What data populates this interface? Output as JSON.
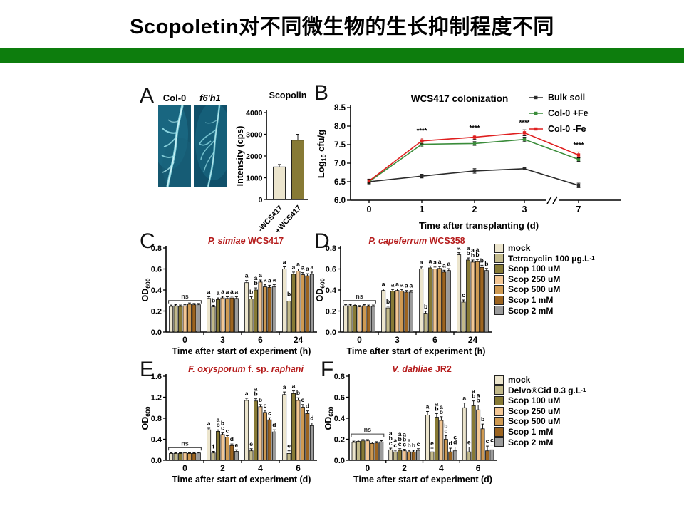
{
  "slide": {
    "title": "Scopoletin对不同微生物的生长抑制程度不同",
    "accent_color": "#0d7d0d",
    "background": "#ffffff"
  },
  "panels": {
    "a": {
      "letter": "A",
      "images": [
        {
          "text": "Col-0",
          "italic": false
        },
        {
          "text": "f6'h1",
          "italic": true
        }
      ]
    },
    "b": {
      "letter": "B"
    },
    "c": {
      "letter": "C"
    },
    "d": {
      "letter": "D"
    },
    "e": {
      "letter": "E"
    },
    "f": {
      "letter": "F"
    }
  },
  "legends": {
    "bacteria": {
      "items": [
        {
          "label": "mock",
          "color": "#ece5cd"
        },
        {
          "label": "Tetracyclin 100 μg.L",
          "sup": "-1",
          "color": "#c2b98a"
        },
        {
          "label": "Scop 100 uM",
          "color": "#877a35"
        },
        {
          "label": "Scop 250 uM",
          "color": "#f3c795"
        },
        {
          "label": "Scop 500 uM",
          "color": "#cf9a52"
        },
        {
          "label": "Scop 1 mM",
          "color": "#9c6420"
        },
        {
          "label": "Scop 2 mM",
          "color": "#9b9b9b"
        }
      ]
    },
    "fungi": {
      "items": [
        {
          "label": "mock",
          "color": "#ece5cd"
        },
        {
          "label": "Delvo®Cid 0.3 g.L",
          "sup": "-1",
          "color": "#c2b98a"
        },
        {
          "label": "Scop 100 uM",
          "color": "#877a35"
        },
        {
          "label": "Scop 250 uM",
          "color": "#f3c795"
        },
        {
          "label": "Scop 500 uM",
          "color": "#cf9a52"
        },
        {
          "label": "Scop 1 mM",
          "color": "#9c6420"
        },
        {
          "label": "Scop 2 mM",
          "color": "#9b9b9b"
        }
      ]
    }
  },
  "chart_data": [
    {
      "id": "scopolin",
      "type": "bar",
      "title": "Scopolin",
      "ylabel": "Intensity (cps)",
      "ylim": [
        0,
        4000
      ],
      "yticks": [
        "0",
        "1000",
        "2000",
        "3000",
        "4000"
      ],
      "categories": [
        "-WCS417",
        "+WCS417"
      ],
      "values": [
        1500,
        2730
      ],
      "errors": [
        110,
        270
      ],
      "bar_colors": [
        "#ece5cd",
        "#877a35"
      ]
    },
    {
      "id": "colonization",
      "type": "line",
      "title": "WCS417 colonization",
      "ylabel_main": "Log",
      "ylabel_sub": "10",
      "ylabel_rest": " cfu/g",
      "xlabel": "Time after transplanting (d)",
      "ylim": [
        6.0,
        8.5
      ],
      "yticks": [
        "6.0",
        "6.5",
        "7.0",
        "7.5",
        "8.0",
        "8.5"
      ],
      "xticklabels": [
        "0",
        "1",
        "2",
        "3",
        "7"
      ],
      "axis_break_between": [
        "3",
        "7"
      ],
      "significance": {
        "label": "****",
        "at_x": [
          "1",
          "2",
          "3",
          "7"
        ]
      },
      "series": [
        {
          "name": "Bulk soil",
          "color": "#2b2b2b",
          "values": [
            6.5,
            6.65,
            6.79,
            6.85,
            6.4
          ],
          "errors": [
            0.06,
            0.05,
            0.06,
            0.03,
            0.06
          ]
        },
        {
          "name": "Col-0 +Fe",
          "color": "#3a8c3a",
          "values": [
            6.5,
            7.51,
            7.53,
            7.64,
            7.1
          ],
          "errors": [
            0.05,
            0.07,
            0.05,
            0.06,
            0.05
          ]
        },
        {
          "name": "Col-0 -Fe",
          "color": "#df1f1f",
          "values": [
            6.52,
            7.6,
            7.7,
            7.82,
            7.22
          ],
          "errors": [
            0.05,
            0.08,
            0.06,
            0.08,
            0.08
          ]
        }
      ]
    },
    {
      "id": "p_simiae",
      "type": "grouped_bar",
      "title_parts": [
        {
          "t": "P. simiae",
          "i": true
        },
        {
          "t": " WCS417",
          "i": false
        }
      ],
      "title_color": "#b51b1b",
      "ylabel_main": "OD",
      "ylabel_sub": "600",
      "xlabel": "Time after start of experiment (h)",
      "ylim": [
        0,
        0.8
      ],
      "yticks": [
        "0.0",
        "0.2",
        "0.4",
        "0.6",
        "0.8"
      ],
      "categories": [
        "0",
        "3",
        "6",
        "24"
      ],
      "ns_label": "ns",
      "ns_y": 0.3,
      "groups": [
        {
          "values": [
            0.245,
            0.25,
            0.245,
            0.25,
            0.265,
            0.26,
            0.26
          ],
          "err": 0.012,
          "letters": [
            "",
            "",
            "",
            "",
            "",
            "",
            ""
          ]
        },
        {
          "values": [
            0.32,
            0.24,
            0.31,
            0.325,
            0.32,
            0.325,
            0.32
          ],
          "err": 0.015,
          "letters": [
            "a",
            "b",
            "a",
            "a",
            "a",
            "a",
            "a"
          ]
        },
        {
          "values": [
            0.47,
            0.315,
            0.4,
            0.475,
            0.43,
            0.425,
            0.43
          ],
          "err": 0.02,
          "letters": [
            "a",
            "b",
            "ab",
            "a",
            "a",
            "a",
            "a"
          ]
        },
        {
          "values": [
            0.6,
            0.295,
            0.55,
            0.58,
            0.545,
            0.535,
            0.55
          ],
          "err": 0.02,
          "letters": [
            "a",
            "b",
            "a",
            "a",
            "a",
            "a",
            "a"
          ]
        }
      ]
    },
    {
      "id": "p_capeferrum",
      "type": "grouped_bar",
      "title_parts": [
        {
          "t": "P. capeferrum",
          "i": true
        },
        {
          "t": " WCS358",
          "i": false
        }
      ],
      "title_color": "#b51b1b",
      "ylabel_main": "OD",
      "ylabel_sub": "600",
      "xlabel": "Time after start of experiment (h)",
      "ylim": [
        0,
        0.8
      ],
      "yticks": [
        "0.0",
        "0.2",
        "0.4",
        "0.6",
        "0.8"
      ],
      "categories": [
        "0",
        "3",
        "6",
        "24"
      ],
      "ns_label": "ns",
      "ns_y": 0.3,
      "groups": [
        {
          "values": [
            0.25,
            0.25,
            0.255,
            0.24,
            0.25,
            0.245,
            0.245
          ],
          "err": 0.012,
          "letters": [
            "",
            "",
            "",
            "",
            "",
            "",
            ""
          ]
        },
        {
          "values": [
            0.395,
            0.23,
            0.39,
            0.395,
            0.39,
            0.38,
            0.38
          ],
          "err": 0.015,
          "letters": [
            "a",
            "b",
            "a",
            "a",
            "a",
            "a",
            "a"
          ]
        },
        {
          "values": [
            0.6,
            0.18,
            0.61,
            0.6,
            0.605,
            0.57,
            0.585
          ],
          "err": 0.018,
          "letters": [
            "a",
            "b",
            "a",
            "a",
            "a",
            "a",
            "a"
          ]
        },
        {
          "values": [
            0.735,
            0.285,
            0.685,
            0.665,
            0.67,
            0.615,
            0.585
          ],
          "err": 0.02,
          "letters": [
            "a",
            "c",
            "ab",
            "ab",
            "ab",
            "b",
            "b"
          ]
        }
      ]
    },
    {
      "id": "f_oxysporum",
      "type": "grouped_bar",
      "title_parts": [
        {
          "t": "F. oxysporum",
          "i": true
        },
        {
          "t": " f. sp. ",
          "i": false
        },
        {
          "t": "raphani",
          "i": true
        }
      ],
      "title_color": "#b51b1b",
      "ylabel_main": "OD",
      "ylabel_sub": "600",
      "xlabel": "Time after start of experiment (d)",
      "ylim": [
        0,
        1.6
      ],
      "yticks": [
        "0.0",
        "0.4",
        "0.8",
        "1.2",
        "1.6"
      ],
      "categories": [
        "0",
        "2",
        "4",
        "6"
      ],
      "ns_label": "ns",
      "ns_y": 0.24,
      "groups": [
        {
          "values": [
            0.13,
            0.13,
            0.13,
            0.14,
            0.13,
            0.13,
            0.14
          ],
          "err": 0.012,
          "letters": [
            "",
            "",
            "",
            "",
            "",
            "",
            ""
          ]
        },
        {
          "values": [
            0.58,
            0.14,
            0.55,
            0.49,
            0.44,
            0.28,
            0.17
          ],
          "err": 0.03,
          "letters": [
            "a",
            "f",
            "ab",
            "bc",
            "c",
            "d",
            "e"
          ]
        },
        {
          "values": [
            1.14,
            0.18,
            1.13,
            1.02,
            0.91,
            0.77,
            0.54
          ],
          "err": 0.04,
          "letters": [
            "a",
            "e",
            "ab",
            "b",
            "c",
            "c",
            "d"
          ]
        },
        {
          "values": [
            1.25,
            0.13,
            1.27,
            1.14,
            1.01,
            0.89,
            0.66
          ],
          "err": 0.05,
          "letters": [
            "a",
            "e",
            "a",
            "b",
            "c",
            "d",
            "d"
          ]
        }
      ]
    },
    {
      "id": "v_dahliae",
      "type": "grouped_bar",
      "title_parts": [
        {
          "t": "V. dahliae",
          "i": true
        },
        {
          "t": " JR2",
          "i": false
        }
      ],
      "title_color": "#b51b1b",
      "ylabel_main": "OD",
      "ylabel_sub": "600",
      "xlabel": "Time after start of experiment (d)",
      "ylim": [
        0,
        0.8
      ],
      "yticks": [
        "0.0",
        "0.2",
        "0.4",
        "0.6",
        "0.8"
      ],
      "categories": [
        "0",
        "2",
        "4",
        "6"
      ],
      "ns_label": "ns",
      "ns_y": 0.25,
      "groups": [
        {
          "values": [
            0.17,
            0.18,
            0.185,
            0.185,
            0.16,
            0.165,
            0.175
          ],
          "err": 0.012,
          "letters": [
            "",
            "",
            "",
            "",
            "",
            "",
            ""
          ]
        },
        {
          "values": [
            0.1,
            0.08,
            0.095,
            0.09,
            0.08,
            0.08,
            0.095
          ],
          "err": 0.015,
          "letters": [
            "abc",
            "ac",
            "abc",
            "abc",
            "ab",
            "b",
            "c"
          ]
        },
        {
          "values": [
            0.43,
            0.08,
            0.41,
            0.38,
            0.2,
            0.08,
            0.09
          ],
          "err": 0.035,
          "letters": [
            "a",
            "e",
            "ab",
            "ab",
            "bc",
            "d",
            "cd"
          ]
        },
        {
          "values": [
            0.5,
            0.08,
            0.52,
            0.48,
            0.3,
            0.09,
            0.1
          ],
          "err": 0.045,
          "letters": [
            "a",
            "e",
            "ab",
            "ab",
            "b",
            "c",
            "c"
          ]
        }
      ]
    }
  ]
}
